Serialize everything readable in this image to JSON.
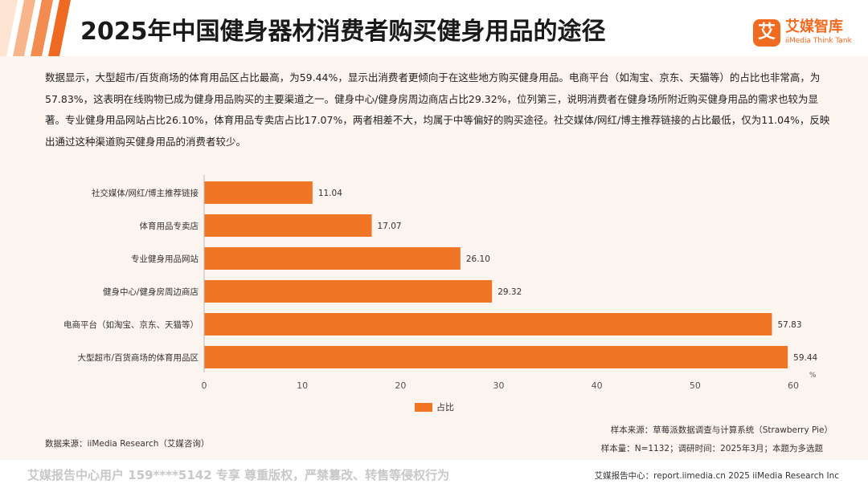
{
  "header": {
    "title": "2025年中国健身器材消费者购买健身用品的途径",
    "logo_badge": "艾",
    "logo_name": "艾媒智库",
    "logo_sub": "iiMedia Think Tank"
  },
  "description": "数据显示，大型超市/百货商场的体育用品区占比最高，为59.44%，显示出消费者更倾向于在这些地方购买健身用品。电商平台（如淘宝、京东、天猫等）的占比也非常高，为57.83%，这表明在线购物已成为健身用品购买的主要渠道之一。健身中心/健身房周边商店占比29.32%，位列第三，说明消费者在健身场所附近购买健身用品的需求也较为显著。专业健身用品网站占比26.10%，体育用品专卖店占比17.07%，两者相差不大，均属于中等偏好的购买途径。社交媒体/网红/博主推荐链接的占比最低，仅为11.04%，反映出通过这种渠道购买健身用品的消费者较少。",
  "chart_data": {
    "type": "bar",
    "orientation": "horizontal",
    "categories": [
      "社交媒体/网红/博主推荐链接",
      "体育用品专卖店",
      "专业健身用品网站",
      "健身中心/健身房周边商店",
      "电商平台（如淘宝、京东、天猫等）",
      "大型超市/百货商场的体育用品区"
    ],
    "series": [
      {
        "name": "占比",
        "values": [
          11.04,
          17.07,
          26.1,
          29.32,
          57.83,
          59.44
        ]
      }
    ],
    "value_labels": [
      "11.04",
      "17.07",
      "26.10",
      "29.32",
      "57.83",
      "59.44"
    ],
    "xlim": [
      0,
      60
    ],
    "xticks": [
      "0",
      "10",
      "20",
      "30",
      "40",
      "50",
      "60"
    ],
    "unit": "%",
    "grid": false,
    "legend_position": "bottom",
    "bar_color": "#f07524"
  },
  "colors": {
    "accent": "#f06a1f",
    "bar": "#f07524",
    "background": "#fbf4ef"
  },
  "notes": {
    "source": "数据来源：iiMedia Research（艾媒咨询）",
    "sample_source": "样本来源：草莓派数据调查与计算系统（Strawberry Pie）",
    "sample_size": "样本量：N=1132；调研时间：2025年3月；本题为多选题"
  },
  "footer": {
    "left": "艾媒报告中心用户 159****5142 专享 尊重版权，严禁篡改、转售等侵权行为",
    "right": "艾媒报告中心：report.iimedia.cn  2025 iiMedia Research Inc"
  }
}
